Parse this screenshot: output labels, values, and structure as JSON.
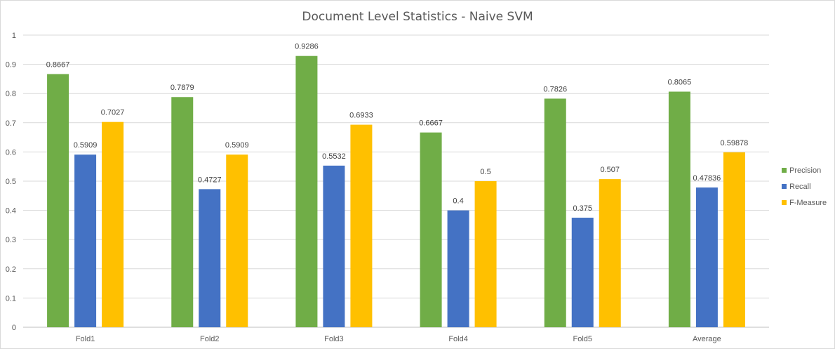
{
  "chart_data": {
    "type": "bar",
    "title": "Document Level Statistics - Naive SVM",
    "xlabel": "",
    "ylabel": "",
    "ylim": [
      0,
      1
    ],
    "yticks": [
      "0",
      "0.1",
      "0.2",
      "0.3",
      "0.4",
      "0.5",
      "0.6",
      "0.7",
      "0.8",
      "0.9",
      "1"
    ],
    "categories": [
      "Fold1",
      "Fold2",
      "Fold3",
      "Fold4",
      "Fold5",
      "Average"
    ],
    "series": [
      {
        "name": "Precision",
        "color": "#70ad47",
        "values": [
          0.8667,
          0.7879,
          0.9286,
          0.6667,
          0.7826,
          0.8065
        ],
        "labels": [
          "0.8667",
          "0.7879",
          "0.9286",
          "0.6667",
          "0.7826",
          "0.8065"
        ]
      },
      {
        "name": "Recall",
        "color": "#4472c4",
        "values": [
          0.5909,
          0.4727,
          0.5532,
          0.4,
          0.375,
          0.47836
        ],
        "labels": [
          "0.5909",
          "0.4727",
          "0.5532",
          "0.4",
          "0.375",
          "0.47836"
        ]
      },
      {
        "name": "F-Measure",
        "color": "#ffc000",
        "values": [
          0.7027,
          0.5909,
          0.6933,
          0.5,
          0.507,
          0.59878
        ],
        "labels": [
          "0.7027",
          "0.5909",
          "0.6933",
          "0.5",
          "0.507",
          "0.59878"
        ]
      }
    ],
    "grid": true,
    "legend": "right"
  }
}
